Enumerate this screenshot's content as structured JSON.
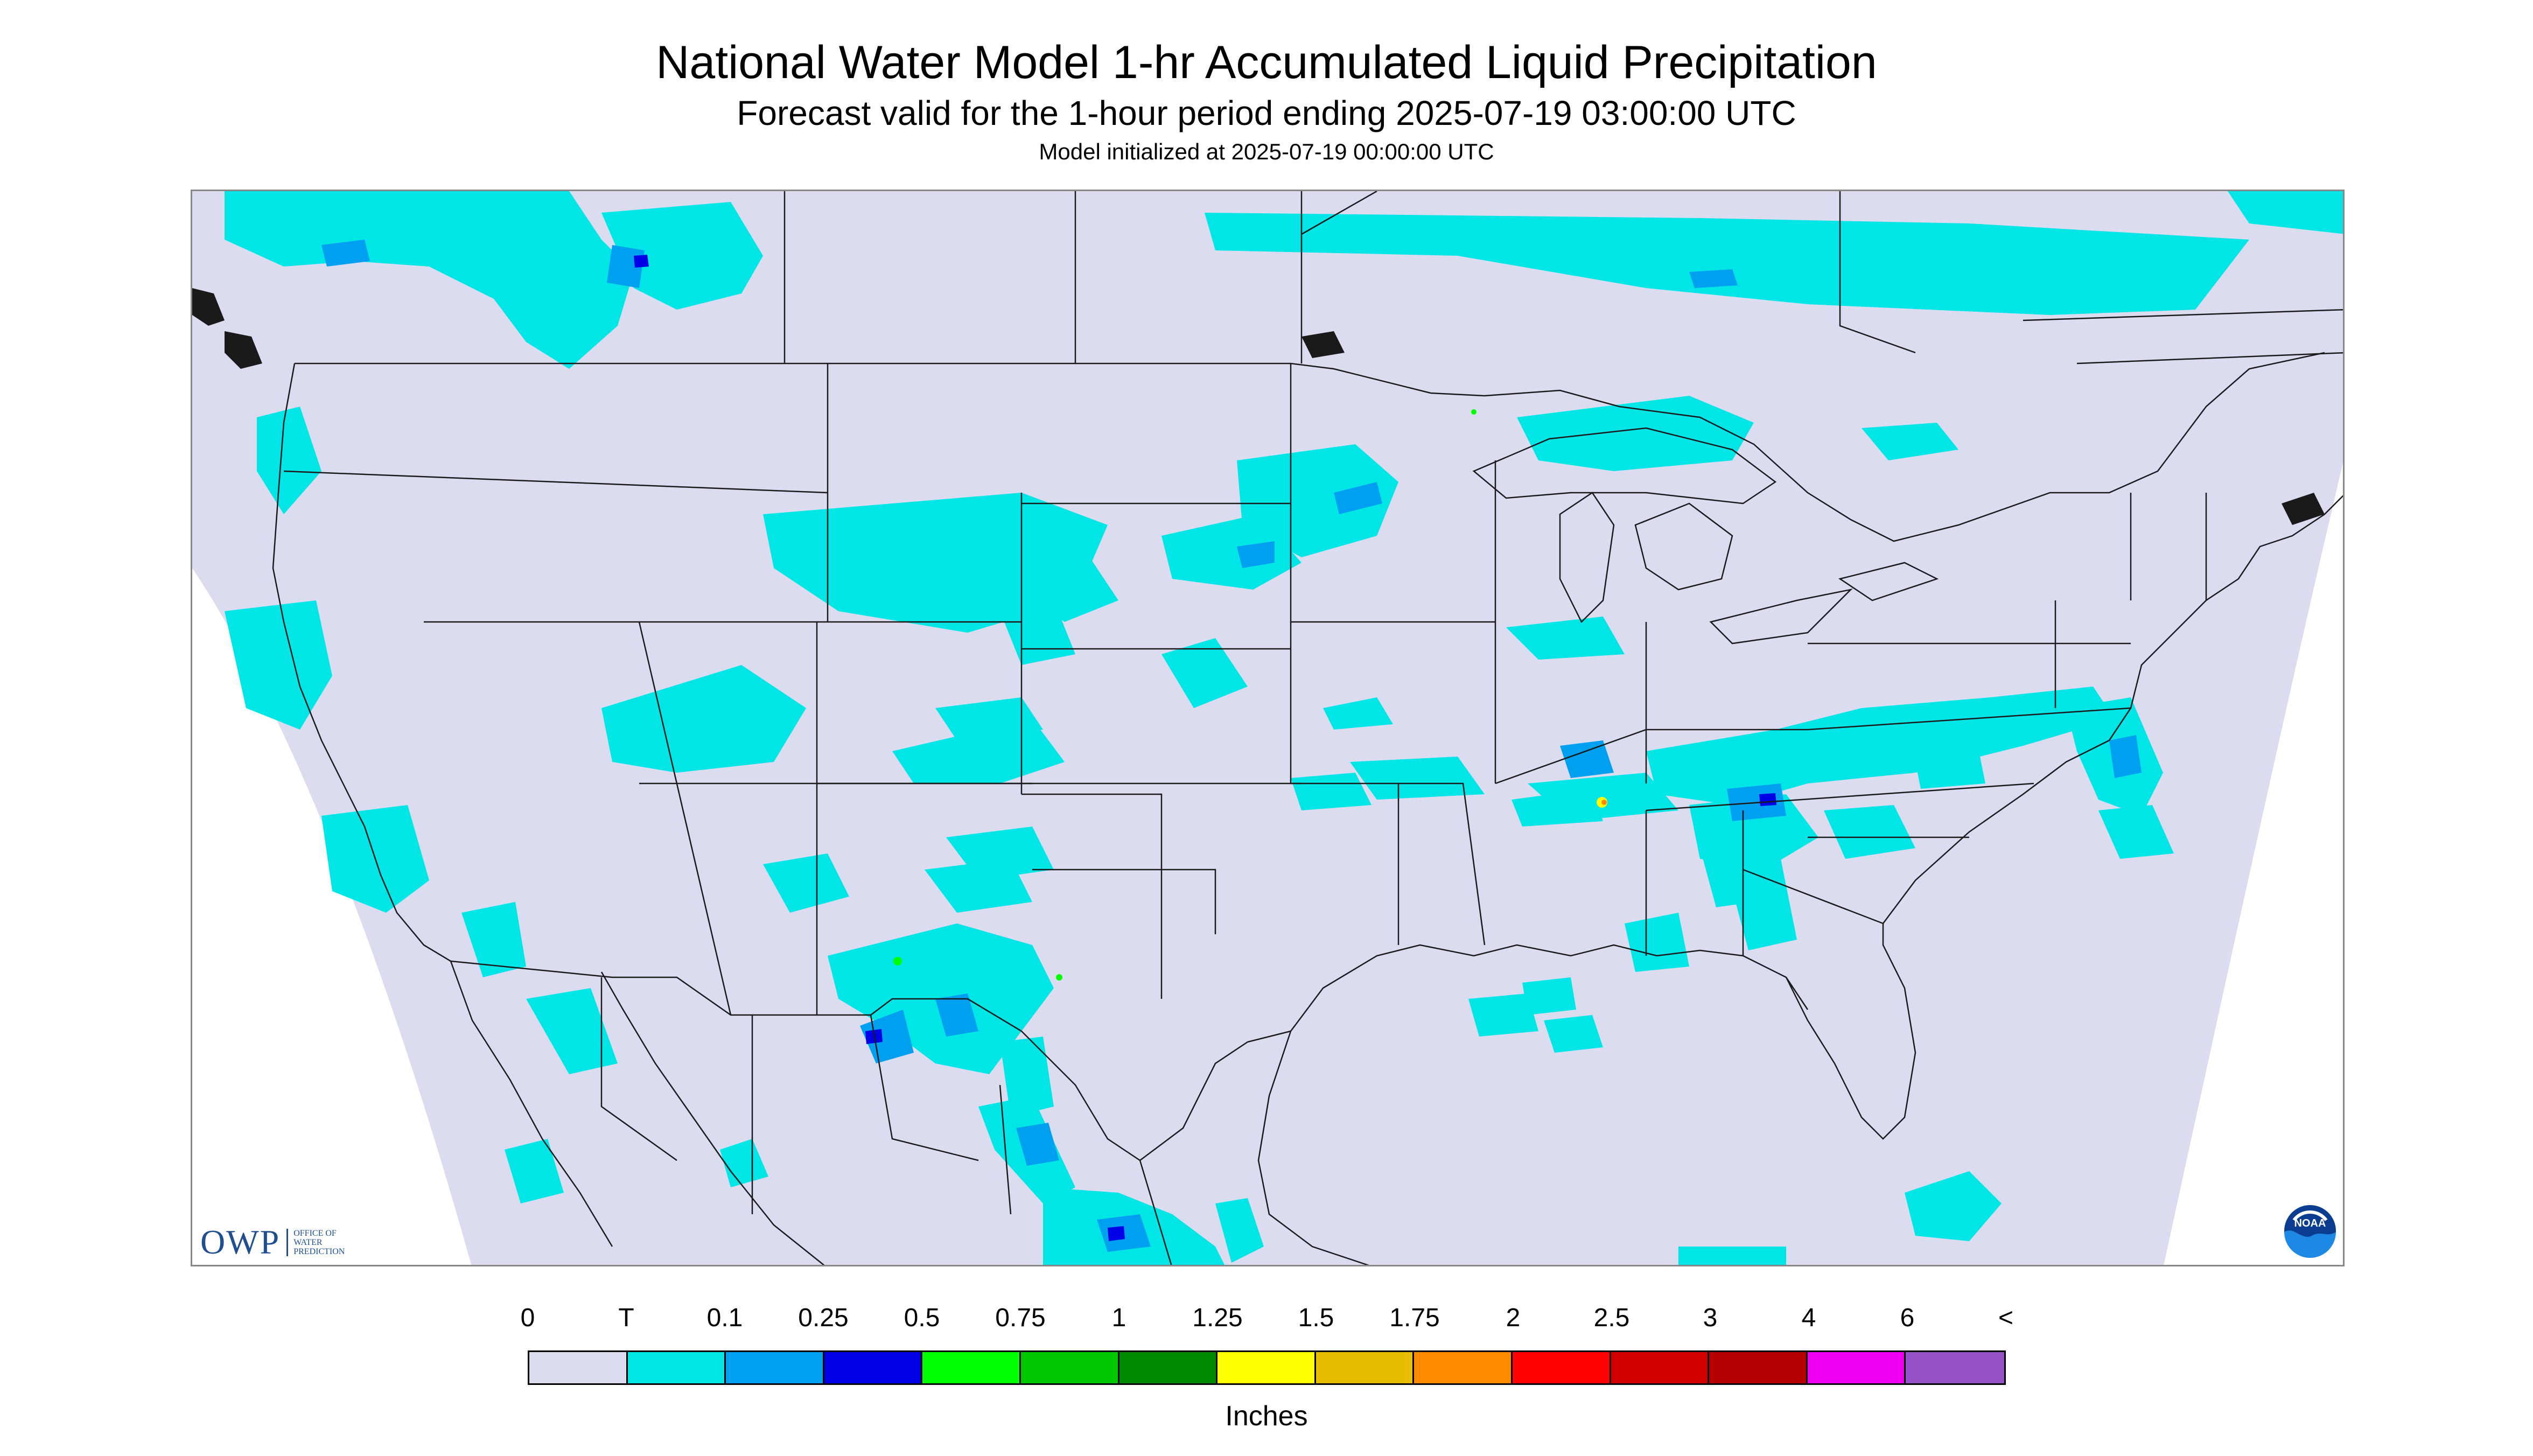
{
  "title": "National Water Model 1-hr Accumulated Liquid Precipitation",
  "subtitle": "Forecast valid for the 1-hour period ending 2025-07-19 03:00:00 UTC",
  "init_text": "Model initialized at 2025-07-19 00:00:00 UTC",
  "legend": {
    "labels": [
      "0",
      "T",
      "0.1",
      "0.25",
      "0.5",
      "0.75",
      "1",
      "1.25",
      "1.5",
      "1.75",
      "2",
      "2.5",
      "3",
      "4",
      "6",
      "<"
    ],
    "colors": [
      "#dcdcf0",
      "#00e6e6",
      "#00a0f0",
      "#0000e6",
      "#00ff00",
      "#00c800",
      "#008c00",
      "#ffff00",
      "#e6be00",
      "#ff8c00",
      "#ff0000",
      "#d20000",
      "#b40000",
      "#f000f0",
      "#9650c8"
    ],
    "units": "Inches"
  },
  "logos": {
    "owp_mark": "OWP",
    "owp_text": [
      "OFFICE OF",
      "WATER",
      "PREDICTION"
    ],
    "noaa_text": "NOAA"
  },
  "map": {
    "background_color": "#dcdcf0",
    "outside_color": "#ffffff",
    "line_color": "#1a1a1a"
  }
}
